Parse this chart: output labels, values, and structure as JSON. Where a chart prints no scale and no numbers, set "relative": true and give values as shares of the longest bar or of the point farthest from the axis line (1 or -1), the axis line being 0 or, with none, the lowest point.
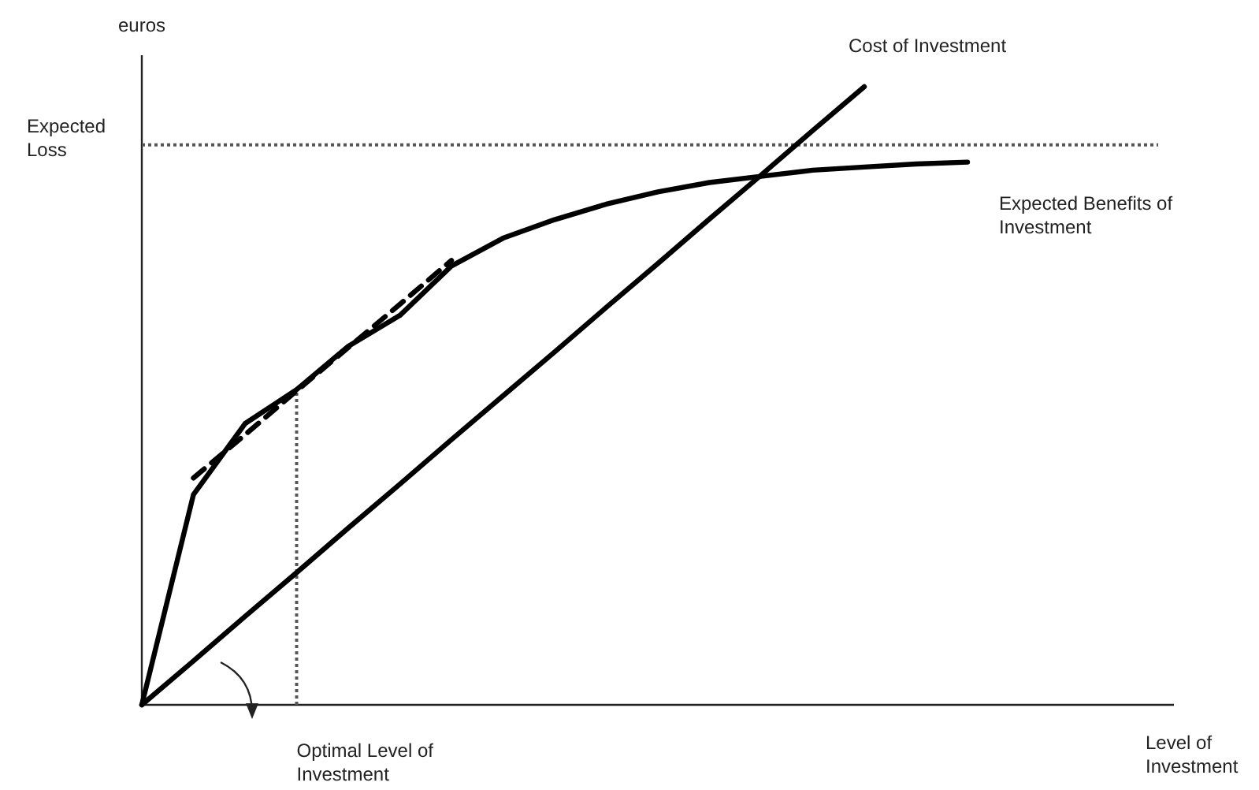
{
  "chart_data": {
    "type": "line",
    "relative": true,
    "xlabel": "Level of Investment",
    "ylabel": "euros",
    "categories": [
      null,
      null,
      null,
      null,
      null,
      null,
      null,
      null,
      null,
      null,
      null,
      null,
      null,
      null,
      null,
      null,
      null,
      null,
      null,
      null,
      null
    ],
    "series": [
      {
        "name": "Cost of Investment",
        "color": "#000000",
        "values": [
          0,
          0.071,
          0.143,
          0.214,
          0.286,
          0.357,
          0.429,
          0.5,
          0.571,
          0.643,
          0.714,
          0.786,
          0.857,
          0.929,
          1,
          null,
          null,
          null,
          null,
          null,
          null
        ]
      },
      {
        "name": "Expected Benefits of Investment",
        "color": "#000000",
        "values": [
          0,
          0.34,
          0.455,
          0.51,
          0.58,
          0.63,
          0.71,
          0.755,
          0.785,
          0.81,
          0.83,
          0.845,
          0.855,
          0.865,
          0.87,
          0.875,
          0.878,
          null,
          null,
          null,
          null
        ]
      },
      {
        "color": "#000000",
        "line_style": "dashed",
        "values": [
          null,
          0.367,
          0.437,
          0.508,
          0.578,
          0.648,
          0.719,
          null,
          null,
          null,
          null,
          null,
          null,
          null,
          null,
          null,
          null,
          null,
          null,
          null,
          null
        ]
      }
    ],
    "ref_lines": [
      {
        "axis": "y",
        "value": 0.906,
        "label": "Expected Loss",
        "color": "#555555",
        "line_style": "dotted"
      }
    ],
    "annotations": [
      "Optimal Level of Investment"
    ]
  }
}
